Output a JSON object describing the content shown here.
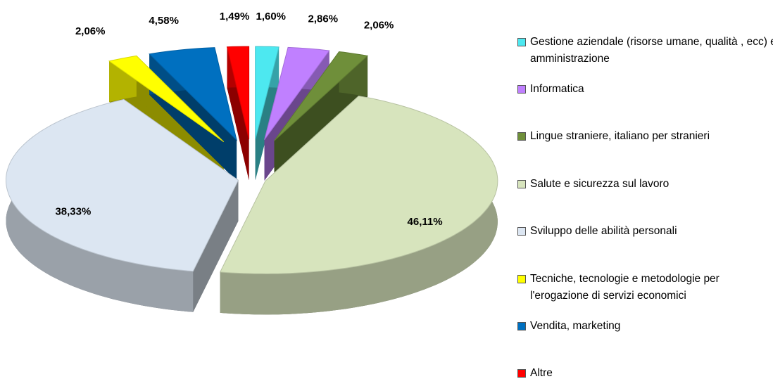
{
  "chart_data": {
    "type": "pie",
    "categories": [
      "Gestione aziendale (risorse umane, qualità , ecc) e amministrazione",
      "Informatica",
      "Lingue straniere, italiano per stranieri",
      "Salute e sicurezza sul lavoro",
      "Sviluppo delle abilità  personali",
      "Tecniche, tecnologie e metodologie per l'erogazione di servizi economici",
      "Vendita, marketing",
      "Altre"
    ],
    "values": [
      1.6,
      2.86,
      2.06,
      46.11,
      38.33,
      2.06,
      4.58,
      1.49
    ],
    "value_labels": [
      "1,60%",
      "2,86%",
      "2,06%",
      "46,11%",
      "38,33%",
      "2,06%",
      "4,58%",
      "1,49%"
    ],
    "colors": [
      "#4de8f0",
      "#c080ff",
      "#6f8f3a",
      "#d7e4bd",
      "#dce6f2",
      "#ffff00",
      "#0070c0",
      "#ff0000"
    ],
    "legend": "right"
  }
}
